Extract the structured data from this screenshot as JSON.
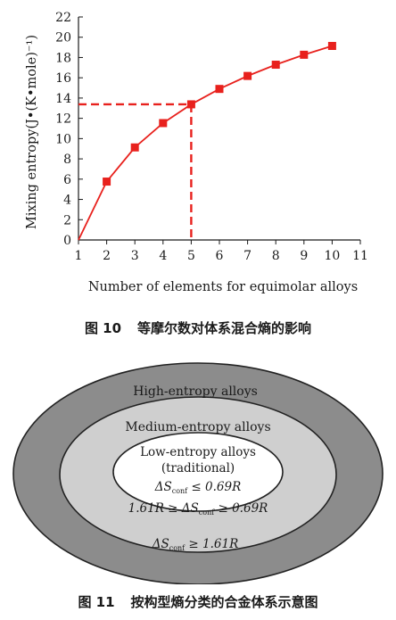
{
  "figure10": {
    "chart_data": {
      "type": "line",
      "x": [
        1,
        2,
        3,
        4,
        5,
        6,
        7,
        8,
        9,
        10
      ],
      "series": [
        {
          "values": [
            0,
            5.76,
            9.13,
            11.53,
            13.38,
            14.9,
            16.18,
            17.29,
            18.27,
            19.14
          ]
        }
      ],
      "highlight": {
        "x": 5,
        "y": 13.38,
        "style": "dashed"
      },
      "xlabel": "Number of elements for equimolar alloys",
      "ylabel": "Mixing entropy(J•(K•mole)⁻¹)",
      "xlim": [
        1,
        11
      ],
      "ylim": [
        0,
        22
      ],
      "xticks": [
        1,
        2,
        3,
        4,
        5,
        6,
        7,
        8,
        9,
        10,
        11
      ],
      "yticks": [
        0,
        2,
        4,
        6,
        8,
        10,
        12,
        14,
        16,
        18,
        20,
        22
      ],
      "grid": false,
      "line_color": "#e8211d",
      "marker": "square"
    },
    "caption_number": "图 10",
    "caption_text": "等摩尔数对体系混合熵的影响"
  },
  "figure11": {
    "outer": {
      "label": "High-entropy alloys",
      "criterion": "ΔS",
      "criterion_sub": "conf",
      "criterion_rest": " ≥ 1.61R",
      "color": "#8c8c8c"
    },
    "middle": {
      "label": "Medium-entropy alloys",
      "criterion": "1.61R ≥ ΔS",
      "criterion_sub": "conf",
      "criterion_rest": " ≥ 0.69R",
      "color": "#cfcfcf"
    },
    "inner": {
      "label": "Low-entropy alloys",
      "label2": "(traditional)",
      "criterion": "ΔS",
      "criterion_sub": "conf",
      "criterion_rest": " ≤ 0.69R",
      "color": "#ffffff"
    },
    "caption_number": "图 11",
    "caption_text": "按构型熵分类的合金体系示意图"
  }
}
